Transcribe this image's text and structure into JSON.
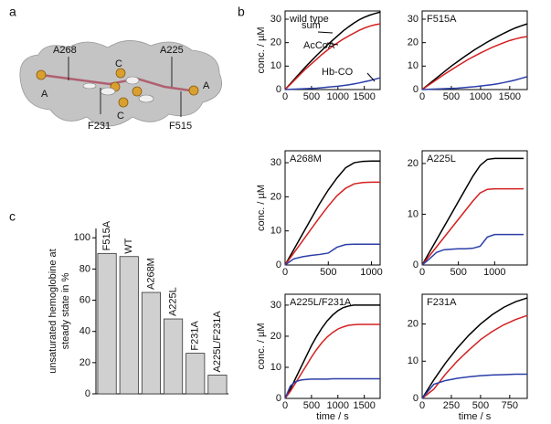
{
  "panel_labels": [
    "a",
    "b",
    "c"
  ],
  "diagram": {
    "labels": [
      "A268",
      "A225",
      "C",
      "C",
      "A",
      "A",
      "F231",
      "F515"
    ]
  },
  "chart_data": [
    {
      "type": "bar",
      "ylabel": [
        "unsaturated hemoglobine at",
        "steady state in %"
      ],
      "categories": [
        "F515A",
        "WT",
        "A268M",
        "A225L",
        "F231A",
        "A225L/F231A"
      ],
      "values": [
        90,
        88,
        65,
        48,
        26,
        12
      ],
      "color": "#d0d0d0",
      "ylim": [
        0,
        106
      ],
      "yticks": [
        0,
        20,
        40,
        60,
        80,
        100
      ]
    },
    {
      "type": "line",
      "title": "wild type",
      "ylabel": "conc. / µM",
      "annotations": [
        "sum",
        "AcCoA",
        "Hb-CO"
      ],
      "x": [
        0,
        100,
        200,
        300,
        400,
        500,
        600,
        700,
        800,
        900,
        1000,
        1100,
        1200,
        1300,
        1400,
        1500,
        1600,
        1700,
        1800
      ],
      "series": [
        {
          "color": "#000000",
          "values": [
            0,
            2.5,
            5,
            7.5,
            10,
            12.3,
            14.6,
            16.8,
            19,
            21,
            23,
            25,
            26.7,
            28.3,
            29.7,
            30.8,
            31.7,
            32.4,
            33
          ]
        },
        {
          "color": "#d42020",
          "values": [
            0,
            2.2,
            4.5,
            6.8,
            9,
            11,
            13,
            15,
            16.8,
            18.5,
            20,
            21.5,
            22.8,
            24,
            25.2,
            26.2,
            27,
            27.6,
            28
          ]
        },
        {
          "color": "#2a3ea8",
          "values": [
            0,
            0.1,
            0.2,
            0.3,
            0.4,
            0.5,
            0.6,
            0.8,
            1,
            1.2,
            1.4,
            1.7,
            2,
            2.4,
            2.8,
            3.3,
            3.8,
            4.4,
            5
          ]
        }
      ],
      "xlim": [
        0,
        1800
      ],
      "xticks": [
        0,
        500,
        1000,
        1500
      ],
      "ylim": [
        0,
        33.5
      ],
      "yticks": [
        0,
        10,
        20,
        30
      ]
    },
    {
      "type": "line",
      "title": "F515A",
      "x": [
        0,
        100,
        200,
        300,
        400,
        500,
        600,
        700,
        800,
        900,
        1000,
        1100,
        1200,
        1300,
        1400,
        1500,
        1600,
        1700,
        1800
      ],
      "series": [
        {
          "color": "#000000",
          "values": [
            0,
            2,
            4,
            6,
            8,
            10,
            11.8,
            13.6,
            15.3,
            17,
            18.5,
            20,
            21.4,
            22.7,
            24,
            25.2,
            26.3,
            27.2,
            28
          ]
        },
        {
          "color": "#d42020",
          "values": [
            0,
            1.7,
            3.4,
            5.1,
            6.8,
            8.4,
            10,
            11.5,
            13,
            14.3,
            15.6,
            16.8,
            18,
            19,
            20,
            20.9,
            21.6,
            22.2,
            22.6
          ]
        },
        {
          "color": "#2a3ea8",
          "values": [
            0,
            0.1,
            0.2,
            0.3,
            0.4,
            0.5,
            0.6,
            0.8,
            1,
            1.2,
            1.5,
            1.8,
            2.1,
            2.5,
            3,
            3.5,
            4.1,
            4.8,
            5.5
          ]
        }
      ],
      "xlim": [
        0,
        1800
      ],
      "xticks": [
        0,
        500,
        1000,
        1500
      ],
      "ylim": [
        0,
        33.5
      ],
      "yticks": [
        0,
        10,
        20,
        30
      ]
    },
    {
      "type": "line",
      "title": "A268M",
      "ylabel": "conc. / µM",
      "x": [
        0,
        100,
        200,
        300,
        400,
        500,
        600,
        700,
        800,
        900,
        1000,
        1100
      ],
      "series": [
        {
          "color": "#000000",
          "values": [
            0,
            4.5,
            9,
            13.5,
            18,
            22,
            25.5,
            28.5,
            30,
            30.4,
            30.5,
            30.5
          ]
        },
        {
          "color": "#d42020",
          "values": [
            0,
            3.5,
            7,
            10.5,
            14,
            17.3,
            20.3,
            22.5,
            23.8,
            24.2,
            24.3,
            24.3
          ]
        },
        {
          "color": "#2a3ea8",
          "values": [
            0,
            1.8,
            2.4,
            2.8,
            3.1,
            3.5,
            5.2,
            6,
            6.1,
            6.1,
            6.1,
            6.1
          ]
        }
      ],
      "xlim": [
        0,
        1100
      ],
      "xticks": [
        0,
        500,
        1000
      ],
      "ylim": [
        0,
        33.5
      ],
      "yticks": [
        0,
        10,
        20,
        30
      ]
    },
    {
      "type": "line",
      "title": "A225L",
      "x": [
        0,
        100,
        200,
        300,
        400,
        500,
        600,
        700,
        800,
        900,
        1000,
        1100,
        1200,
        1300,
        1400
      ],
      "series": [
        {
          "color": "#000000",
          "values": [
            0,
            2.5,
            5,
            7.5,
            10,
            12.5,
            15,
            17.5,
            19.6,
            20.8,
            21,
            21,
            21,
            21,
            21
          ]
        },
        {
          "color": "#d42020",
          "values": [
            0,
            1.8,
            3.6,
            5.4,
            7.2,
            9,
            10.8,
            12.6,
            14.2,
            14.9,
            15,
            15,
            15,
            15,
            15
          ]
        },
        {
          "color": "#2a3ea8",
          "values": [
            0,
            1.2,
            2.5,
            3,
            3.1,
            3.2,
            3.2,
            3.3,
            3.7,
            5.5,
            6,
            6,
            6,
            6,
            6
          ]
        }
      ],
      "xlim": [
        0,
        1450
      ],
      "xticks": [
        0,
        500,
        1000
      ],
      "ylim": [
        0,
        22.5
      ],
      "yticks": [
        0,
        10,
        20
      ]
    },
    {
      "type": "line",
      "title": "A225L/F231A",
      "ylabel": "conc. / µM",
      "xlabel": "time / s",
      "x": [
        0,
        100,
        200,
        300,
        400,
        500,
        600,
        700,
        800,
        900,
        1000,
        1100,
        1200,
        1300,
        1400,
        1500,
        1600,
        1700,
        1800
      ],
      "series": [
        {
          "color": "#000000",
          "values": [
            0,
            3,
            6.5,
            10,
            13.5,
            17,
            20,
            22.7,
            25,
            26.8,
            28.2,
            29.2,
            29.7,
            30,
            30,
            30,
            30,
            30,
            30
          ]
        },
        {
          "color": "#d42020",
          "values": [
            0,
            2.3,
            5,
            7.8,
            10.5,
            13.3,
            15.8,
            18,
            19.8,
            21.2,
            22.3,
            23,
            23.5,
            23.7,
            23.8,
            23.8,
            23.8,
            23.8,
            23.8
          ]
        },
        {
          "color": "#2a3ea8",
          "values": [
            0,
            4,
            5.4,
            5.9,
            6.1,
            6.2,
            6.2,
            6.2,
            6.2,
            6.3,
            6.3,
            6.3,
            6.3,
            6.3,
            6.3,
            6.3,
            6.3,
            6.3,
            6.3
          ]
        }
      ],
      "xlim": [
        0,
        1800
      ],
      "xticks": [
        0,
        500,
        1000,
        1500
      ],
      "ylim": [
        0,
        33.5
      ],
      "yticks": [
        0,
        10,
        20,
        30
      ]
    },
    {
      "type": "line",
      "title": "F231A",
      "xlabel": "time / s",
      "x": [
        0,
        100,
        200,
        300,
        400,
        500,
        600,
        700,
        800,
        900
      ],
      "series": [
        {
          "color": "#000000",
          "values": [
            0,
            5,
            9.5,
            13.5,
            17,
            20,
            22.5,
            24.5,
            26,
            27
          ]
        },
        {
          "color": "#d42020",
          "values": [
            0,
            2.5,
            6.5,
            10,
            13,
            15.8,
            18,
            19.8,
            21.2,
            22.3
          ]
        },
        {
          "color": "#2a3ea8",
          "values": [
            0,
            3.8,
            4.8,
            5.4,
            5.8,
            6.1,
            6.3,
            6.4,
            6.5,
            6.5
          ]
        }
      ],
      "xlim": [
        0,
        900
      ],
      "xticks": [
        0,
        250,
        500,
        750
      ],
      "ylim": [
        0,
        28
      ],
      "yticks": [
        0,
        10,
        20
      ]
    }
  ]
}
